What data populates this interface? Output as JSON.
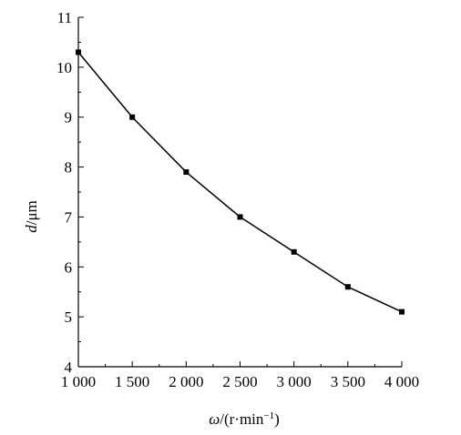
{
  "chart_data": {
    "type": "line",
    "title": "",
    "xlabel_prefix": "ω",
    "xlabel_suffix": "/(r·min",
    "xlabel_exp": "−1",
    "xlabel_close": ")",
    "ylabel_prefix": "d",
    "ylabel_suffix": "/μm",
    "x": [
      1000,
      1500,
      2000,
      2500,
      3000,
      3500,
      4000
    ],
    "y": [
      10.3,
      9.0,
      7.9,
      7.0,
      6.3,
      5.6,
      5.1
    ],
    "xlim": [
      1000,
      4000
    ],
    "ylim": [
      4,
      11
    ],
    "x_ticks": [
      1000,
      1500,
      2000,
      2500,
      3000,
      3500,
      4000
    ],
    "x_tick_labels": [
      "1 000",
      "1 500",
      "2 000",
      "2 500",
      "3 000",
      "3 500",
      "4 000"
    ],
    "y_ticks": [
      4,
      5,
      6,
      7,
      8,
      9,
      10,
      11
    ],
    "y_tick_labels": [
      "4",
      "5",
      "6",
      "7",
      "8",
      "9",
      "10",
      "11"
    ],
    "grid": false,
    "marker": "square",
    "line_color": "#000000"
  }
}
